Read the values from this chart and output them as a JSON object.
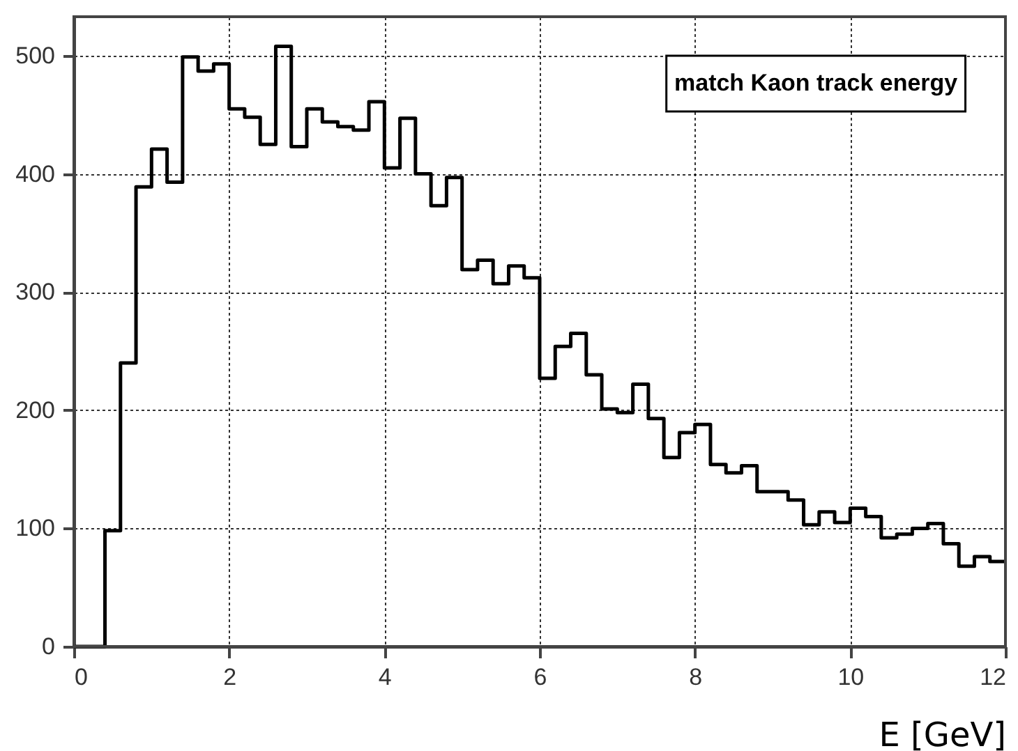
{
  "chart_data": {
    "type": "histogram",
    "title": "match Kaon track energy",
    "xlabel": "E [GeV]",
    "bins": [
      0,
      0.2,
      0.4,
      0.6,
      0.8,
      1.0,
      1.2,
      1.4,
      1.6,
      1.8,
      2.0,
      2.2,
      2.4,
      2.6,
      2.8,
      3.0,
      3.2,
      3.4,
      3.6,
      3.8,
      4.0,
      4.2,
      4.4,
      4.6,
      4.8,
      5.0,
      5.2,
      5.4,
      5.6,
      5.8,
      6.0,
      6.2,
      6.4,
      6.6,
      6.8,
      7.0,
      7.2,
      7.4,
      7.6,
      7.8,
      8.0,
      8.2,
      8.4,
      8.6,
      8.8,
      9.0,
      9.2,
      9.4,
      9.6,
      9.8,
      10.0,
      10.2,
      10.4,
      10.6,
      10.8,
      11.0,
      11.2,
      11.4,
      11.6,
      11.8,
      12.0
    ],
    "values": [
      0,
      0,
      98,
      240,
      389,
      421,
      393,
      499,
      487,
      493,
      455,
      448,
      425,
      508,
      423,
      455,
      444,
      440,
      437,
      461,
      405,
      447,
      400,
      373,
      397,
      319,
      327,
      307,
      322,
      312,
      227,
      254,
      265,
      230,
      201,
      198,
      222,
      193,
      160,
      181,
      188,
      154,
      147,
      153,
      131,
      131,
      124,
      103,
      114,
      105,
      117,
      110,
      92,
      95,
      100,
      104,
      87,
      68,
      76,
      72
    ],
    "color": "#000000",
    "xlim": [
      0,
      12
    ],
    "ylim": [
      0,
      533
    ],
    "xticks": [
      0,
      2,
      4,
      6,
      8,
      10,
      12
    ],
    "yticks": [
      0,
      100,
      200,
      300,
      400,
      500
    ],
    "grid": true
  }
}
